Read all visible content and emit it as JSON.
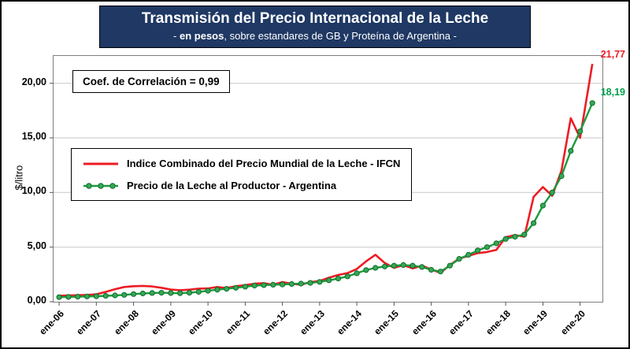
{
  "colors": {
    "title_bg": "#1F3864",
    "red_line": "#ED1C24",
    "green_line": "#1C9A3F",
    "green_marker_fill": "#35A853",
    "green_marker_edge": "#0F6B2D",
    "green_label": "#00A14B",
    "gridline": "#C8C8C8"
  },
  "header": {
    "title_main": "Transmisión del Precio Internacional de la Leche",
    "subtitle_prefix": "- ",
    "subtitle_bold": "en pesos",
    "subtitle_rest": ", sobre estandares de GB y Proteína de Argentina -"
  },
  "annotations": {
    "correlation_label": "Coef. de Correlación = 0,99",
    "end_label_red": "21,77",
    "end_label_green": "18,19"
  },
  "legend": {
    "items": [
      {
        "label": "Indice Combinado del Precio Mundial de la Leche - IFCN",
        "color": "#ED1C24",
        "marker": "none"
      },
      {
        "label": "Precio de la Leche al Productor - Argentina",
        "color": "#1C9A3F",
        "marker": "circle"
      }
    ]
  },
  "chart_data": {
    "type": "line",
    "title": "Transmisión del Precio Internacional de la Leche - en pesos, sobre estandares de GB y Proteína de Argentina",
    "xlabel": "",
    "ylabel": "$/litro",
    "ylim": [
      0,
      22.5
    ],
    "xlim": [
      2005.85,
      2020.6
    ],
    "x_unit": "decimal_year_monthly_series_sampled_quarterly",
    "grid": "horizontal",
    "legend_position": "inside-left",
    "x": [
      2006.0,
      2006.25,
      2006.5,
      2006.75,
      2007.0,
      2007.25,
      2007.5,
      2007.75,
      2008.0,
      2008.25,
      2008.5,
      2008.75,
      2009.0,
      2009.25,
      2009.5,
      2009.75,
      2010.0,
      2010.25,
      2010.5,
      2010.75,
      2011.0,
      2011.25,
      2011.5,
      2011.75,
      2012.0,
      2012.25,
      2012.5,
      2012.75,
      2013.0,
      2013.25,
      2013.5,
      2013.75,
      2014.0,
      2014.25,
      2014.5,
      2014.75,
      2015.0,
      2015.25,
      2015.5,
      2015.75,
      2016.0,
      2016.25,
      2016.5,
      2016.75,
      2017.0,
      2017.25,
      2017.5,
      2017.75,
      2018.0,
      2018.25,
      2018.5,
      2018.75,
      2019.0,
      2019.25,
      2019.5,
      2019.75,
      2020.0,
      2020.33
    ],
    "series": [
      {
        "name": "Indice Combinado del Precio Mundial de la Leche - IFCN",
        "color": "#ED1C24",
        "marker": "none",
        "values": [
          0.55,
          0.57,
          0.6,
          0.62,
          0.68,
          0.9,
          1.15,
          1.35,
          1.42,
          1.45,
          1.4,
          1.28,
          1.12,
          1.05,
          1.1,
          1.2,
          1.22,
          1.35,
          1.25,
          1.42,
          1.52,
          1.65,
          1.7,
          1.55,
          1.8,
          1.65,
          1.55,
          1.8,
          1.9,
          2.2,
          2.45,
          2.62,
          3.0,
          3.7,
          4.3,
          3.55,
          3.1,
          3.35,
          3.05,
          3.3,
          2.95,
          2.65,
          3.35,
          3.95,
          4.2,
          4.45,
          4.55,
          4.75,
          5.9,
          6.1,
          5.95,
          9.6,
          10.5,
          9.7,
          12.0,
          16.8,
          15.0,
          21.77
        ]
      },
      {
        "name": "Precio de la Leche al Productor - Argentina",
        "color": "#1C9A3F",
        "marker": "circle",
        "values": [
          0.42,
          0.44,
          0.46,
          0.48,
          0.5,
          0.54,
          0.58,
          0.63,
          0.7,
          0.76,
          0.8,
          0.82,
          0.8,
          0.78,
          0.82,
          0.9,
          1.0,
          1.1,
          1.18,
          1.28,
          1.38,
          1.48,
          1.52,
          1.56,
          1.58,
          1.62,
          1.66,
          1.72,
          1.82,
          1.96,
          2.12,
          2.32,
          2.6,
          2.9,
          3.1,
          3.22,
          3.3,
          3.36,
          3.3,
          3.18,
          2.92,
          2.76,
          3.3,
          3.92,
          4.3,
          4.7,
          5.0,
          5.35,
          5.75,
          5.95,
          6.15,
          7.2,
          8.8,
          10.0,
          11.5,
          13.8,
          15.6,
          18.19
        ]
      }
    ],
    "y_ticks": [
      {
        "v": 0,
        "label": "0,00"
      },
      {
        "v": 5,
        "label": "5,00"
      },
      {
        "v": 10,
        "label": "10,00"
      },
      {
        "v": 15,
        "label": "15,00"
      },
      {
        "v": 20,
        "label": "20,00"
      }
    ],
    "x_ticks": [
      {
        "v": 2006,
        "label": "ene-06"
      },
      {
        "v": 2007,
        "label": "ene-07"
      },
      {
        "v": 2008,
        "label": "ene-08"
      },
      {
        "v": 2009,
        "label": "ene-09"
      },
      {
        "v": 2010,
        "label": "ene-10"
      },
      {
        "v": 2011,
        "label": "ene-11"
      },
      {
        "v": 2012,
        "label": "ene-12"
      },
      {
        "v": 2013,
        "label": "ene-13"
      },
      {
        "v": 2014,
        "label": "ene-14"
      },
      {
        "v": 2015,
        "label": "ene-15"
      },
      {
        "v": 2016,
        "label": "ene-16"
      },
      {
        "v": 2017,
        "label": "ene-17"
      },
      {
        "v": 2018,
        "label": "ene-18"
      },
      {
        "v": 2019,
        "label": "ene-19"
      },
      {
        "v": 2020,
        "label": "ene-20"
      }
    ],
    "annotations": [
      "Coef. de Correlación = 0,99",
      "21,77",
      "18,19"
    ]
  }
}
